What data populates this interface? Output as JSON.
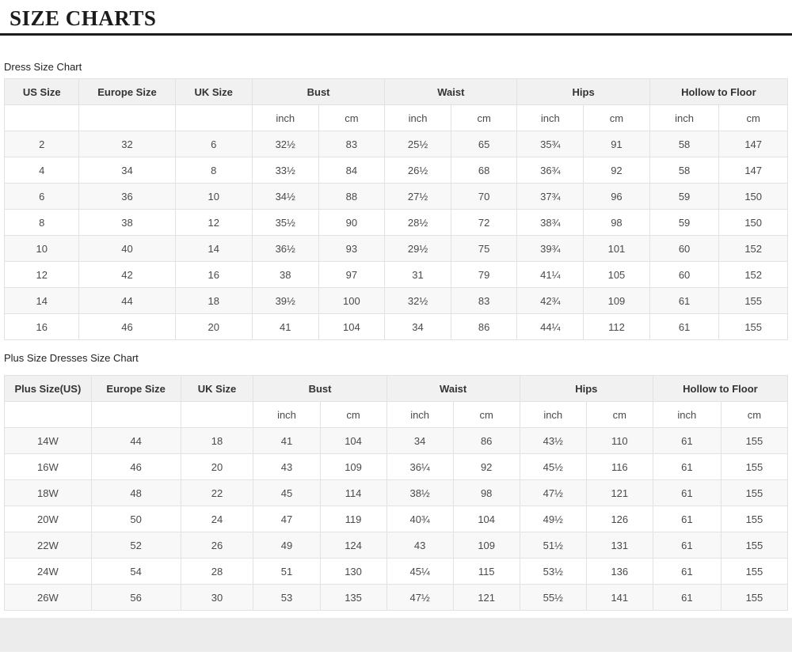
{
  "page": {
    "title": "SIZE CHARTS"
  },
  "colors": {
    "divider": "#1d1d1d",
    "header_bg": "#f1f1f1",
    "stripe_bg": "#f8f8f8",
    "border": "#e2e2e2",
    "footer_band": "#ececec",
    "text": "#4a4a4a"
  },
  "tables": [
    {
      "caption": "Dress Size Chart",
      "group_headers": [
        {
          "label": "US Size",
          "span": 1
        },
        {
          "label": "Europe Size",
          "span": 1
        },
        {
          "label": "UK Size",
          "span": 1
        },
        {
          "label": "Bust",
          "span": 2
        },
        {
          "label": "Waist",
          "span": 2
        },
        {
          "label": "Hips",
          "span": 2
        },
        {
          "label": "Hollow to Floor",
          "span": 2
        }
      ],
      "unit_row": [
        "",
        "",
        "",
        "inch",
        "cm",
        "inch",
        "cm",
        "inch",
        "cm",
        "inch",
        "cm"
      ],
      "rows": [
        [
          "2",
          "32",
          "6",
          "32½",
          "83",
          "25½",
          "65",
          "35¾",
          "91",
          "58",
          "147"
        ],
        [
          "4",
          "34",
          "8",
          "33½",
          "84",
          "26½",
          "68",
          "36¾",
          "92",
          "58",
          "147"
        ],
        [
          "6",
          "36",
          "10",
          "34½",
          "88",
          "27½",
          "70",
          "37¾",
          "96",
          "59",
          "150"
        ],
        [
          "8",
          "38",
          "12",
          "35½",
          "90",
          "28½",
          "72",
          "38¾",
          "98",
          "59",
          "150"
        ],
        [
          "10",
          "40",
          "14",
          "36½",
          "93",
          "29½",
          "75",
          "39¾",
          "101",
          "60",
          "152"
        ],
        [
          "12",
          "42",
          "16",
          "38",
          "97",
          "31",
          "79",
          "41¼",
          "105",
          "60",
          "152"
        ],
        [
          "14",
          "44",
          "18",
          "39½",
          "100",
          "32½",
          "83",
          "42¾",
          "109",
          "61",
          "155"
        ],
        [
          "16",
          "46",
          "20",
          "41",
          "104",
          "34",
          "86",
          "44¼",
          "112",
          "61",
          "155"
        ]
      ]
    },
    {
      "caption": "Plus Size Dresses Size Chart",
      "group_headers": [
        {
          "label": "Plus Size(US)",
          "span": 1
        },
        {
          "label": "Europe Size",
          "span": 1
        },
        {
          "label": "UK Size",
          "span": 1
        },
        {
          "label": "Bust",
          "span": 2
        },
        {
          "label": "Waist",
          "span": 2
        },
        {
          "label": "Hips",
          "span": 2
        },
        {
          "label": "Hollow to Floor",
          "span": 2
        }
      ],
      "unit_row": [
        "",
        "",
        "",
        "inch",
        "cm",
        "inch",
        "cm",
        "inch",
        "cm",
        "inch",
        "cm"
      ],
      "rows": [
        [
          "14W",
          "44",
          "18",
          "41",
          "104",
          "34",
          "86",
          "43½",
          "110",
          "61",
          "155"
        ],
        [
          "16W",
          "46",
          "20",
          "43",
          "109",
          "36¼",
          "92",
          "45½",
          "116",
          "61",
          "155"
        ],
        [
          "18W",
          "48",
          "22",
          "45",
          "114",
          "38½",
          "98",
          "47½",
          "121",
          "61",
          "155"
        ],
        [
          "20W",
          "50",
          "24",
          "47",
          "119",
          "40¾",
          "104",
          "49½",
          "126",
          "61",
          "155"
        ],
        [
          "22W",
          "52",
          "26",
          "49",
          "124",
          "43",
          "109",
          "51½",
          "131",
          "61",
          "155"
        ],
        [
          "24W",
          "54",
          "28",
          "51",
          "130",
          "45¼",
          "115",
          "53½",
          "136",
          "61",
          "155"
        ],
        [
          "26W",
          "56",
          "30",
          "53",
          "135",
          "47½",
          "121",
          "55½",
          "141",
          "61",
          "155"
        ]
      ]
    }
  ]
}
